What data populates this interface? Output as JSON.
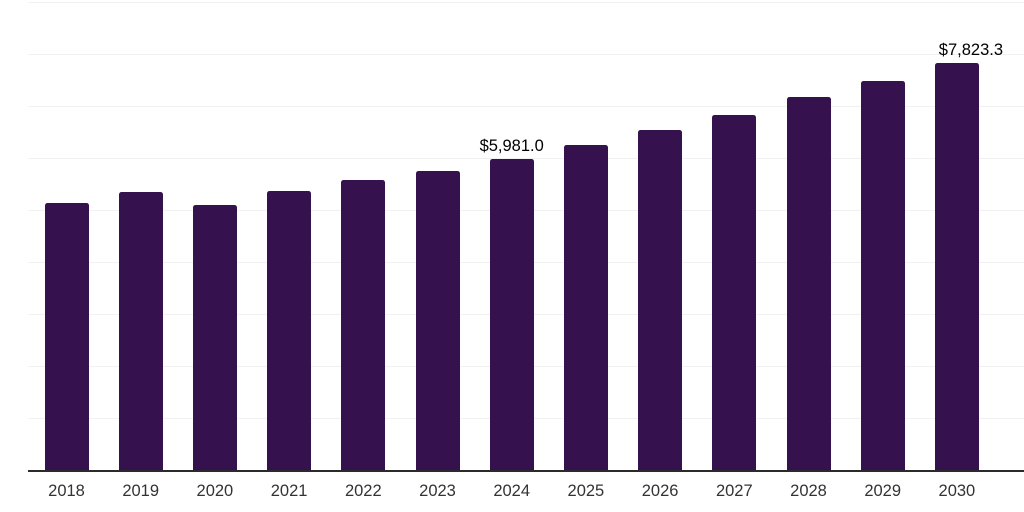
{
  "chart_data": {
    "type": "bar",
    "title": "",
    "xlabel": "",
    "ylabel": "",
    "categories": [
      "2018",
      "2019",
      "2020",
      "2021",
      "2022",
      "2023",
      "2024",
      "2025",
      "2026",
      "2027",
      "2028",
      "2029",
      "2030"
    ],
    "values": [
      5130,
      5340,
      5105,
      5360,
      5570,
      5745,
      5981.0,
      6245,
      6530,
      6820,
      7165,
      7475,
      7823.3
    ],
    "data_labels": {
      "2024": "$5,981.0",
      "2030": "$7,823.3"
    },
    "ylim": [
      0,
      9000
    ],
    "gridline_step": 1000,
    "grid": "horizontal",
    "legend": "none",
    "y_axis_labels": "none",
    "colors": {
      "bar": "#35124e",
      "axis_line": "#2b2b2b",
      "gridline": "#f1f1f1",
      "tick_label": "#333333",
      "data_label": "#000000",
      "background": "#ffffff"
    }
  }
}
